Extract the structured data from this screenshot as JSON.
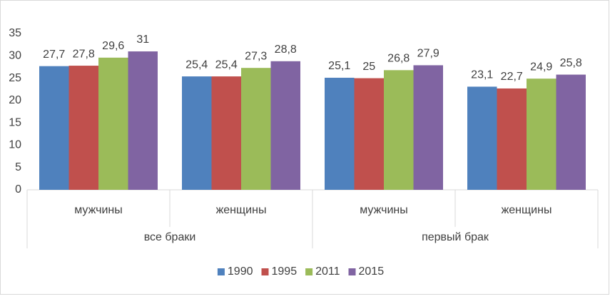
{
  "chart_data": {
    "type": "bar",
    "categories": [
      "мужчины",
      "женщины",
      "мужчины",
      "женщины"
    ],
    "groups": [
      "все браки",
      "первый брак"
    ],
    "series": [
      {
        "name": "1990",
        "color": "#4f81bd",
        "values": [
          27.7,
          25.4,
          25.1,
          23.1
        ],
        "value_labels": [
          "27,7",
          "25,4",
          "25,1",
          "23,1"
        ]
      },
      {
        "name": "1995",
        "color": "#c0504d",
        "values": [
          27.8,
          25.4,
          25,
          22.7
        ],
        "value_labels": [
          "27,8",
          "25,4",
          "25",
          "22,7"
        ]
      },
      {
        "name": "2011",
        "color": "#9bbb59",
        "values": [
          29.6,
          27.3,
          26.8,
          24.9
        ],
        "value_labels": [
          "29,6",
          "27,3",
          "26,8",
          "24,9"
        ]
      },
      {
        "name": "2015",
        "color": "#8064a2",
        "values": [
          31,
          28.8,
          27.9,
          25.8
        ],
        "value_labels": [
          "31",
          "28,8",
          "27,9",
          "25,8"
        ]
      }
    ],
    "ylim": [
      0,
      35
    ],
    "yticks": [
      0,
      5,
      10,
      15,
      20,
      25,
      30,
      35
    ],
    "grid": false,
    "legend": "bottom"
  }
}
